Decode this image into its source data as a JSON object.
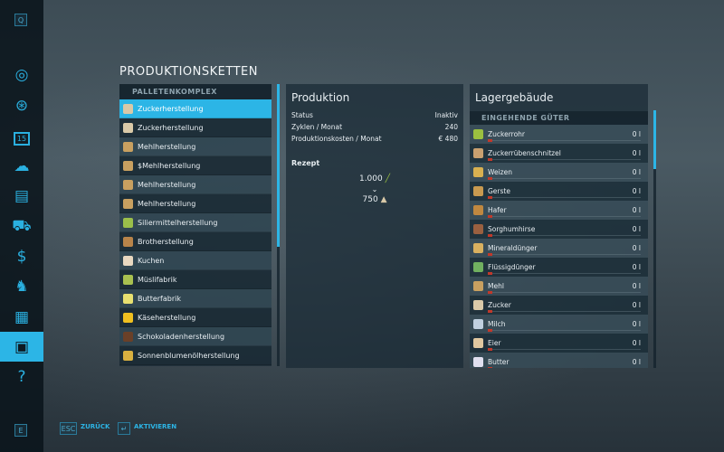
{
  "sidebar": {
    "top_key": "Q",
    "bottom_key": "E",
    "items": [
      {
        "icon": "globe-icon"
      },
      {
        "icon": "steering-wheel-icon"
      },
      {
        "icon": "calendar-icon",
        "label": "15"
      },
      {
        "icon": "weather-icon"
      },
      {
        "icon": "statistics-icon"
      },
      {
        "icon": "tractor-icon"
      },
      {
        "icon": "dollar-icon"
      },
      {
        "icon": "cow-icon"
      },
      {
        "icon": "contracts-icon"
      },
      {
        "icon": "production-chains-icon",
        "active": true
      },
      {
        "icon": "help-icon"
      }
    ]
  },
  "title": "PRODUKTIONSKETTEN",
  "list": {
    "header": "PALLETENKOMPLEX",
    "items": [
      {
        "label": "Zuckerherstellung",
        "color": "#d9c9a8",
        "selected": true
      },
      {
        "label": "Zuckerherstellung",
        "color": "#d9c9a8"
      },
      {
        "label": "Mehlherstellung",
        "color": "#c8a060"
      },
      {
        "label": "$Mehlherstellung",
        "color": "#c8a060"
      },
      {
        "label": "Mehlherstellung",
        "color": "#c8a060"
      },
      {
        "label": "Mehlherstellung",
        "color": "#c8a060"
      },
      {
        "label": "Siliermittelherstellung",
        "color": "#9bbf4a"
      },
      {
        "label": "Brotherstellung",
        "color": "#b8844a"
      },
      {
        "label": "Kuchen",
        "color": "#e8d8c0"
      },
      {
        "label": "Müslifabrik",
        "color": "#a8c050"
      },
      {
        "label": "Butterfabrik",
        "color": "#e8e070"
      },
      {
        "label": "Käseherstellung",
        "color": "#f0c020"
      },
      {
        "label": "Schokoladenherstellung",
        "color": "#6a4028"
      },
      {
        "label": "Sonnenblumenölherstellung",
        "color": "#d8b040"
      }
    ]
  },
  "production": {
    "title": "Produktion",
    "rows": [
      {
        "k": "Status",
        "v": "Inaktiv"
      },
      {
        "k": "Zyklen / Monat",
        "v": "240"
      },
      {
        "k": "Produktionskosten / Monat",
        "v": "€ 480"
      }
    ],
    "recipe_label": "Rezept",
    "input_amount": "1.000",
    "input_icon": "sugarcane-icon",
    "output_amount": "750",
    "output_icon": "sugar-icon"
  },
  "storage": {
    "title": "Lagergebäude",
    "section": "EINGEHENDE GÜTER",
    "items": [
      {
        "label": "Zuckerrohr",
        "value": "0 l",
        "color": "#9bc040",
        "fill": 0
      },
      {
        "label": "Zuckerrübenschnitzel",
        "value": "0 l",
        "color": "#c8a070",
        "fill": 0
      },
      {
        "label": "Weizen",
        "value": "0 l",
        "color": "#d8b050",
        "fill": 0
      },
      {
        "label": "Gerste",
        "value": "0 l",
        "color": "#c89a50",
        "fill": 0
      },
      {
        "label": "Hafer",
        "value": "0 l",
        "color": "#c08840",
        "fill": 0
      },
      {
        "label": "Sorghumhirse",
        "value": "0 l",
        "color": "#9a6040",
        "fill": 0
      },
      {
        "label": "Mineraldünger",
        "value": "0 l",
        "color": "#d8b060",
        "fill": 0
      },
      {
        "label": "Flüssigdünger",
        "value": "0 l",
        "color": "#70b060",
        "fill": 0
      },
      {
        "label": "Mehl",
        "value": "0 l",
        "color": "#c8a060",
        "fill": 0
      },
      {
        "label": "Zucker",
        "value": "0 l",
        "color": "#d9c9a8",
        "fill": 0
      },
      {
        "label": "Milch",
        "value": "0 l",
        "color": "#c0d0e0",
        "fill": 0
      },
      {
        "label": "Eier",
        "value": "0 l",
        "color": "#e0c8a0",
        "fill": 0
      },
      {
        "label": "Butter",
        "value": "0 l",
        "color": "#e0e0f0",
        "fill": 0
      }
    ]
  },
  "footer": {
    "esc_key": "ESC",
    "back": "ZURÜCK",
    "enter_key": "↵",
    "activate": "AKTIVIEREN"
  }
}
